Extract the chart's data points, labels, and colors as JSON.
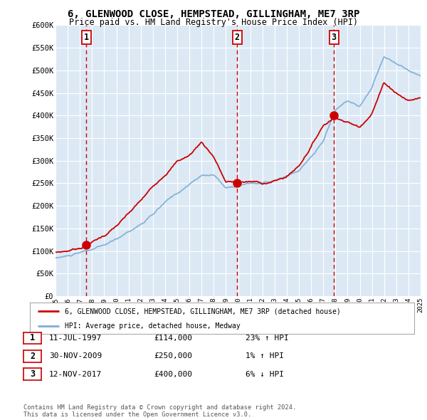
{
  "title": "6, GLENWOOD CLOSE, HEMPSTEAD, GILLINGHAM, ME7 3RP",
  "subtitle": "Price paid vs. HM Land Registry's House Price Index (HPI)",
  "background_color": "#ffffff",
  "plot_bg_color": "#dce9f5",
  "ylim": [
    0,
    600000
  ],
  "yticks": [
    0,
    50000,
    100000,
    150000,
    200000,
    250000,
    300000,
    350000,
    400000,
    450000,
    500000,
    550000,
    600000
  ],
  "ytick_labels": [
    "£0",
    "£50K",
    "£100K",
    "£150K",
    "£200K",
    "£250K",
    "£300K",
    "£350K",
    "£400K",
    "£450K",
    "£500K",
    "£550K",
    "£600K"
  ],
  "xmin_year": 1995,
  "xmax_year": 2025,
  "xtick_years": [
    1995,
    1996,
    1997,
    1998,
    1999,
    2000,
    2001,
    2002,
    2003,
    2004,
    2005,
    2006,
    2007,
    2008,
    2009,
    2010,
    2011,
    2012,
    2013,
    2014,
    2015,
    2016,
    2017,
    2018,
    2019,
    2020,
    2021,
    2022,
    2023,
    2024,
    2025
  ],
  "sale_color": "#cc0000",
  "hpi_color": "#7eadd4",
  "sale_label": "6, GLENWOOD CLOSE, HEMPSTEAD, GILLINGHAM, ME7 3RP (detached house)",
  "hpi_label": "HPI: Average price, detached house, Medway",
  "sale_points": [
    {
      "year": 1997.53,
      "price": 114000,
      "label": "1"
    },
    {
      "year": 2009.92,
      "price": 250000,
      "label": "2"
    },
    {
      "year": 2017.87,
      "price": 400000,
      "label": "3"
    }
  ],
  "table": [
    {
      "num": "1",
      "date": "11-JUL-1997",
      "price": "£114,000",
      "hpi": "23% ↑ HPI"
    },
    {
      "num": "2",
      "date": "30-NOV-2009",
      "price": "£250,000",
      "hpi": "1% ↑ HPI"
    },
    {
      "num": "3",
      "date": "12-NOV-2017",
      "price": "£400,000",
      "hpi": "6% ↓ HPI"
    }
  ],
  "footer": "Contains HM Land Registry data © Crown copyright and database right 2024.\nThis data is licensed under the Open Government Licence v3.0.",
  "grid_color": "#ffffff",
  "number_box_color": "#ffffff",
  "number_box_edge": "#cc0000"
}
